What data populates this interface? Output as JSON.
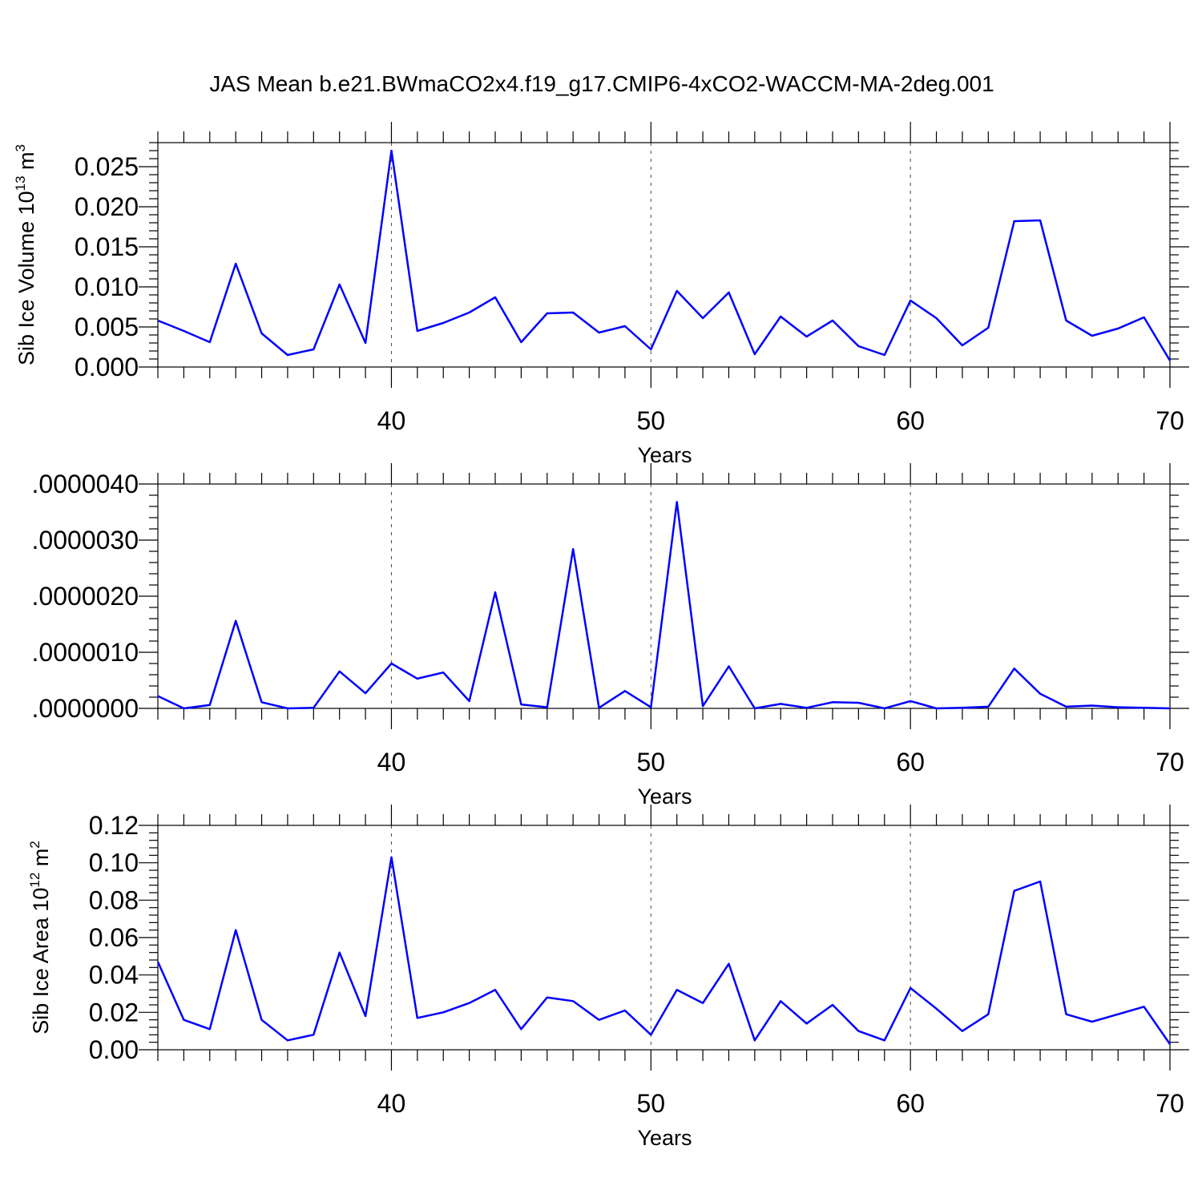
{
  "figure": {
    "title": "JAS Mean b.e21.BWmaCO2x4.f19_g17.CMIP6-4xCO2-WACCM-MA-2deg.001"
  },
  "colors": {
    "series": "#0000ff",
    "axes": "#000000",
    "background": "#ffffff"
  },
  "chart_data": [
    {
      "type": "line",
      "title": "",
      "xlabel": "Years",
      "ylabel": "Sib Ice Volume 10",
      "ylabel_exp": "13",
      "ylabel_unit": " m",
      "ylabel_unit_exp": "3",
      "xlim": [
        31,
        70
      ],
      "ylim": [
        0,
        0.028
      ],
      "x_ticks": [
        40,
        50,
        60,
        70
      ],
      "x_tick_labels": [
        "40",
        "50",
        "60",
        "70"
      ],
      "y_ticks": [
        0,
        0.005,
        0.01,
        0.015,
        0.02,
        0.025
      ],
      "y_tick_labels": [
        "0.000",
        "0.005",
        "0.010",
        "0.015",
        "0.020",
        "0.025"
      ],
      "grid": "dashed vertical at major x ticks",
      "x": [
        31,
        32,
        33,
        34,
        35,
        36,
        37,
        38,
        39,
        40,
        41,
        42,
        43,
        44,
        45,
        46,
        47,
        48,
        49,
        50,
        51,
        52,
        53,
        54,
        55,
        56,
        57,
        58,
        59,
        60,
        61,
        62,
        63,
        64,
        65,
        66,
        67,
        68,
        69,
        70
      ],
      "series": [
        {
          "values": [
            0.0058,
            0.0045,
            0.0031,
            0.0129,
            0.0042,
            0.0015,
            0.0022,
            0.0103,
            0.003,
            0.027,
            0.0045,
            0.0055,
            0.0068,
            0.0087,
            0.0031,
            0.0067,
            0.0068,
            0.0043,
            0.0051,
            0.0022,
            0.0095,
            0.0061,
            0.0093,
            0.0016,
            0.0063,
            0.0038,
            0.0058,
            0.0026,
            0.0015,
            0.0083,
            0.0061,
            0.0027,
            0.0049,
            0.0182,
            0.0183,
            0.0058,
            0.0039,
            0.0048,
            0.0062,
            0.0008
          ]
        }
      ]
    },
    {
      "type": "line",
      "title": "",
      "xlabel": "Years",
      "ylabel": "",
      "xlim": [
        31,
        70
      ],
      "ylim": [
        0,
        4e-06
      ],
      "x_ticks": [
        40,
        50,
        60,
        70
      ],
      "x_tick_labels": [
        "40",
        "50",
        "60",
        "70"
      ],
      "y_ticks": [
        0,
        1e-06,
        2e-06,
        3e-06,
        4e-06
      ],
      "y_tick_labels": [
        ".0000000",
        ".0000010",
        ".0000020",
        ".0000030",
        ".0000040"
      ],
      "grid": "dashed vertical at major x ticks",
      "x": [
        31,
        32,
        33,
        34,
        35,
        36,
        37,
        38,
        39,
        40,
        41,
        42,
        43,
        44,
        45,
        46,
        47,
        48,
        49,
        50,
        51,
        52,
        53,
        54,
        55,
        56,
        57,
        58,
        59,
        60,
        61,
        62,
        63,
        64,
        65,
        66,
        67,
        68,
        69,
        70
      ],
      "series": [
        {
          "values": [
            2.2e-07,
            0.0,
            6e-08,
            1.56e-06,
            1.1e-07,
            0.0,
            1e-08,
            6.6e-07,
            2.7e-07,
            8e-07,
            5.3e-07,
            6.4e-07,
            1.3e-07,
            2.07e-06,
            7e-08,
            2e-08,
            2.84e-06,
            1e-08,
            3.1e-07,
            2e-08,
            3.68e-06,
            4e-08,
            7.5e-07,
            0.0,
            8e-08,
            1e-08,
            1.1e-07,
            1e-07,
            0.0,
            1.3e-07,
            0.0,
            1e-08,
            3e-08,
            7.1e-07,
            2.6e-07,
            3e-08,
            5e-08,
            2e-08,
            1e-08,
            0.0
          ]
        }
      ]
    },
    {
      "type": "line",
      "title": "",
      "xlabel": "Years",
      "ylabel": "Sib Ice Area 10",
      "ylabel_exp": "12",
      "ylabel_unit": " m",
      "ylabel_unit_exp": "2",
      "xlim": [
        31,
        70
      ],
      "ylim": [
        0,
        0.12
      ],
      "x_ticks": [
        40,
        50,
        60,
        70
      ],
      "x_tick_labels": [
        "40",
        "50",
        "60",
        "70"
      ],
      "y_ticks": [
        0,
        0.02,
        0.04,
        0.06,
        0.08,
        0.1,
        0.12
      ],
      "y_tick_labels": [
        "0.00",
        "0.02",
        "0.04",
        "0.06",
        "0.08",
        "0.10",
        "0.12"
      ],
      "grid": "dashed vertical at major x ticks",
      "x": [
        31,
        32,
        33,
        34,
        35,
        36,
        37,
        38,
        39,
        40,
        41,
        42,
        43,
        44,
        45,
        46,
        47,
        48,
        49,
        50,
        51,
        52,
        53,
        54,
        55,
        56,
        57,
        58,
        59,
        60,
        61,
        62,
        63,
        64,
        65,
        66,
        67,
        68,
        69,
        70
      ],
      "series": [
        {
          "values": [
            0.047,
            0.016,
            0.011,
            0.064,
            0.016,
            0.005,
            0.008,
            0.052,
            0.018,
            0.103,
            0.017,
            0.02,
            0.025,
            0.032,
            0.011,
            0.028,
            0.026,
            0.016,
            0.021,
            0.008,
            0.032,
            0.025,
            0.046,
            0.005,
            0.026,
            0.014,
            0.024,
            0.01,
            0.005,
            0.033,
            0.022,
            0.01,
            0.019,
            0.085,
            0.09,
            0.019,
            0.015,
            0.019,
            0.023,
            0.003
          ]
        }
      ]
    }
  ]
}
